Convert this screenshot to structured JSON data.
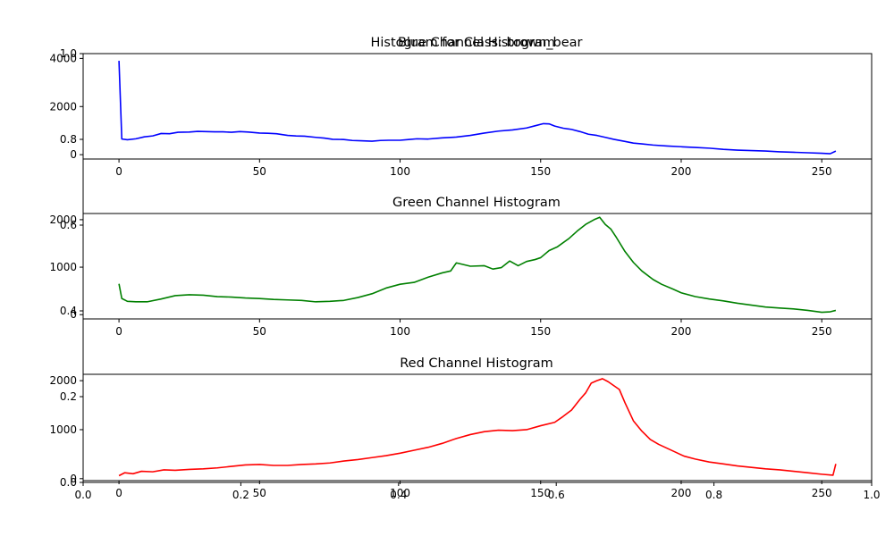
{
  "figure": {
    "title": "Histogram for Class: brown_bear",
    "outer_axis": {
      "xticks": [
        "0.0",
        "0.2",
        "0.4",
        "0.6",
        "0.8",
        "1.0"
      ],
      "yticks": [
        "0.0",
        "0.2",
        "0.4",
        "0.6",
        "0.8",
        "1.0"
      ],
      "xlim": [
        0,
        1
      ],
      "ylim": [
        0,
        1
      ]
    }
  },
  "chart_data": [
    {
      "type": "line",
      "title": "Blue Channel Histogram",
      "color": "#0000ff",
      "xlim": [
        -12.75,
        267.75
      ],
      "ylim": [
        -180,
        4200
      ],
      "xticks": [
        0,
        50,
        100,
        150,
        200,
        250
      ],
      "yticks": [
        0,
        2000,
        4000
      ],
      "series": [
        {
          "points": [
            [
              0,
              3900
            ],
            [
              1,
              650
            ],
            [
              3,
              620
            ],
            [
              6,
              660
            ],
            [
              9,
              740
            ],
            [
              12,
              780
            ],
            [
              15,
              880
            ],
            [
              18,
              870
            ],
            [
              21,
              930
            ],
            [
              25,
              940
            ],
            [
              28,
              970
            ],
            [
              31,
              960
            ],
            [
              34,
              950
            ],
            [
              37,
              950
            ],
            [
              40,
              930
            ],
            [
              43,
              960
            ],
            [
              46,
              940
            ],
            [
              50,
              900
            ],
            [
              53,
              890
            ],
            [
              56,
              870
            ],
            [
              60,
              800
            ],
            [
              63,
              780
            ],
            [
              66,
              770
            ],
            [
              70,
              720
            ],
            [
              73,
              690
            ],
            [
              76,
              640
            ],
            [
              80,
              630
            ],
            [
              83,
              590
            ],
            [
              86,
              580
            ],
            [
              90,
              560
            ],
            [
              93,
              590
            ],
            [
              96,
              600
            ],
            [
              100,
              600
            ],
            [
              103,
              630
            ],
            [
              106,
              660
            ],
            [
              110,
              650
            ],
            [
              115,
              700
            ],
            [
              120,
              730
            ],
            [
              125,
              800
            ],
            [
              130,
              900
            ],
            [
              135,
              980
            ],
            [
              140,
              1030
            ],
            [
              145,
              1110
            ],
            [
              148,
              1200
            ],
            [
              151,
              1290
            ],
            [
              153,
              1280
            ],
            [
              155,
              1190
            ],
            [
              158,
              1100
            ],
            [
              161,
              1050
            ],
            [
              164,
              960
            ],
            [
              167,
              850
            ],
            [
              170,
              800
            ],
            [
              173,
              720
            ],
            [
              176,
              640
            ],
            [
              180,
              550
            ],
            [
              183,
              480
            ],
            [
              186,
              450
            ],
            [
              190,
              400
            ],
            [
              195,
              360
            ],
            [
              200,
              330
            ],
            [
              205,
              300
            ],
            [
              210,
              270
            ],
            [
              215,
              220
            ],
            [
              220,
              190
            ],
            [
              225,
              170
            ],
            [
              230,
              150
            ],
            [
              235,
              120
            ],
            [
              240,
              100
            ],
            [
              245,
              80
            ],
            [
              250,
              60
            ],
            [
              253,
              40
            ],
            [
              255,
              150
            ]
          ]
        }
      ]
    },
    {
      "type": "line",
      "title": "Green Channel Histogram",
      "color": "#008000",
      "xlim": [
        -12.75,
        267.75
      ],
      "ylim": [
        -90,
        2130
      ],
      "xticks": [
        0,
        50,
        100,
        150,
        200,
        250
      ],
      "yticks": [
        0,
        1000,
        2000
      ],
      "series": [
        {
          "points": [
            [
              0,
              650
            ],
            [
              1,
              340
            ],
            [
              3,
              280
            ],
            [
              6,
              270
            ],
            [
              10,
              270
            ],
            [
              15,
              330
            ],
            [
              20,
              400
            ],
            [
              25,
              420
            ],
            [
              30,
              410
            ],
            [
              35,
              380
            ],
            [
              40,
              370
            ],
            [
              45,
              350
            ],
            [
              50,
              340
            ],
            [
              55,
              320
            ],
            [
              60,
              310
            ],
            [
              65,
              300
            ],
            [
              70,
              270
            ],
            [
              75,
              280
            ],
            [
              80,
              300
            ],
            [
              85,
              360
            ],
            [
              90,
              440
            ],
            [
              95,
              560
            ],
            [
              100,
              640
            ],
            [
              105,
              680
            ],
            [
              110,
              790
            ],
            [
              115,
              880
            ],
            [
              118,
              920
            ],
            [
              120,
              1090
            ],
            [
              125,
              1020
            ],
            [
              130,
              1030
            ],
            [
              133,
              960
            ],
            [
              136,
              990
            ],
            [
              139,
              1130
            ],
            [
              142,
              1030
            ],
            [
              145,
              1120
            ],
            [
              148,
              1160
            ],
            [
              150,
              1200
            ],
            [
              153,
              1350
            ],
            [
              156,
              1430
            ],
            [
              160,
              1600
            ],
            [
              163,
              1760
            ],
            [
              166,
              1900
            ],
            [
              169,
              2000
            ],
            [
              171,
              2050
            ],
            [
              173,
              1900
            ],
            [
              175,
              1800
            ],
            [
              177,
              1620
            ],
            [
              180,
              1330
            ],
            [
              183,
              1100
            ],
            [
              186,
              920
            ],
            [
              190,
              740
            ],
            [
              193,
              640
            ],
            [
              197,
              540
            ],
            [
              200,
              460
            ],
            [
              205,
              380
            ],
            [
              210,
              330
            ],
            [
              215,
              290
            ],
            [
              220,
              240
            ],
            [
              225,
              200
            ],
            [
              230,
              160
            ],
            [
              235,
              140
            ],
            [
              240,
              120
            ],
            [
              245,
              90
            ],
            [
              250,
              50
            ],
            [
              253,
              60
            ],
            [
              255,
              90
            ]
          ]
        }
      ]
    },
    {
      "type": "line",
      "title": "Red Channel Histogram",
      "color": "#ff0000",
      "xlim": [
        -12.75,
        267.75
      ],
      "ylim": [
        -40,
        2130
      ],
      "xticks": [
        0,
        50,
        100,
        150,
        200,
        250
      ],
      "yticks": [
        0,
        1000,
        2000
      ],
      "series": [
        {
          "points": [
            [
              0,
              60
            ],
            [
              2,
              120
            ],
            [
              5,
              100
            ],
            [
              8,
              150
            ],
            [
              12,
              140
            ],
            [
              16,
              180
            ],
            [
              20,
              170
            ],
            [
              25,
              190
            ],
            [
              30,
              200
            ],
            [
              35,
              220
            ],
            [
              40,
              250
            ],
            [
              45,
              280
            ],
            [
              50,
              290
            ],
            [
              55,
              270
            ],
            [
              60,
              270
            ],
            [
              65,
              290
            ],
            [
              70,
              300
            ],
            [
              75,
              320
            ],
            [
              80,
              360
            ],
            [
              85,
              390
            ],
            [
              90,
              430
            ],
            [
              95,
              470
            ],
            [
              100,
              520
            ],
            [
              105,
              580
            ],
            [
              110,
              640
            ],
            [
              115,
              720
            ],
            [
              120,
              820
            ],
            [
              125,
              900
            ],
            [
              130,
              960
            ],
            [
              135,
              990
            ],
            [
              140,
              980
            ],
            [
              145,
              1000
            ],
            [
              150,
              1080
            ],
            [
              155,
              1150
            ],
            [
              158,
              1270
            ],
            [
              161,
              1400
            ],
            [
              164,
              1620
            ],
            [
              166,
              1750
            ],
            [
              168,
              1950
            ],
            [
              170,
              2000
            ],
            [
              172,
              2040
            ],
            [
              174,
              1980
            ],
            [
              176,
              1900
            ],
            [
              178,
              1820
            ],
            [
              180,
              1550
            ],
            [
              183,
              1180
            ],
            [
              186,
              970
            ],
            [
              189,
              800
            ],
            [
              192,
              700
            ],
            [
              195,
              620
            ],
            [
              198,
              540
            ],
            [
              201,
              460
            ],
            [
              205,
              400
            ],
            [
              210,
              340
            ],
            [
              215,
              300
            ],
            [
              220,
              260
            ],
            [
              225,
              230
            ],
            [
              230,
              200
            ],
            [
              235,
              180
            ],
            [
              240,
              150
            ],
            [
              245,
              120
            ],
            [
              250,
              90
            ],
            [
              254,
              70
            ],
            [
              255,
              300
            ]
          ]
        }
      ]
    }
  ]
}
